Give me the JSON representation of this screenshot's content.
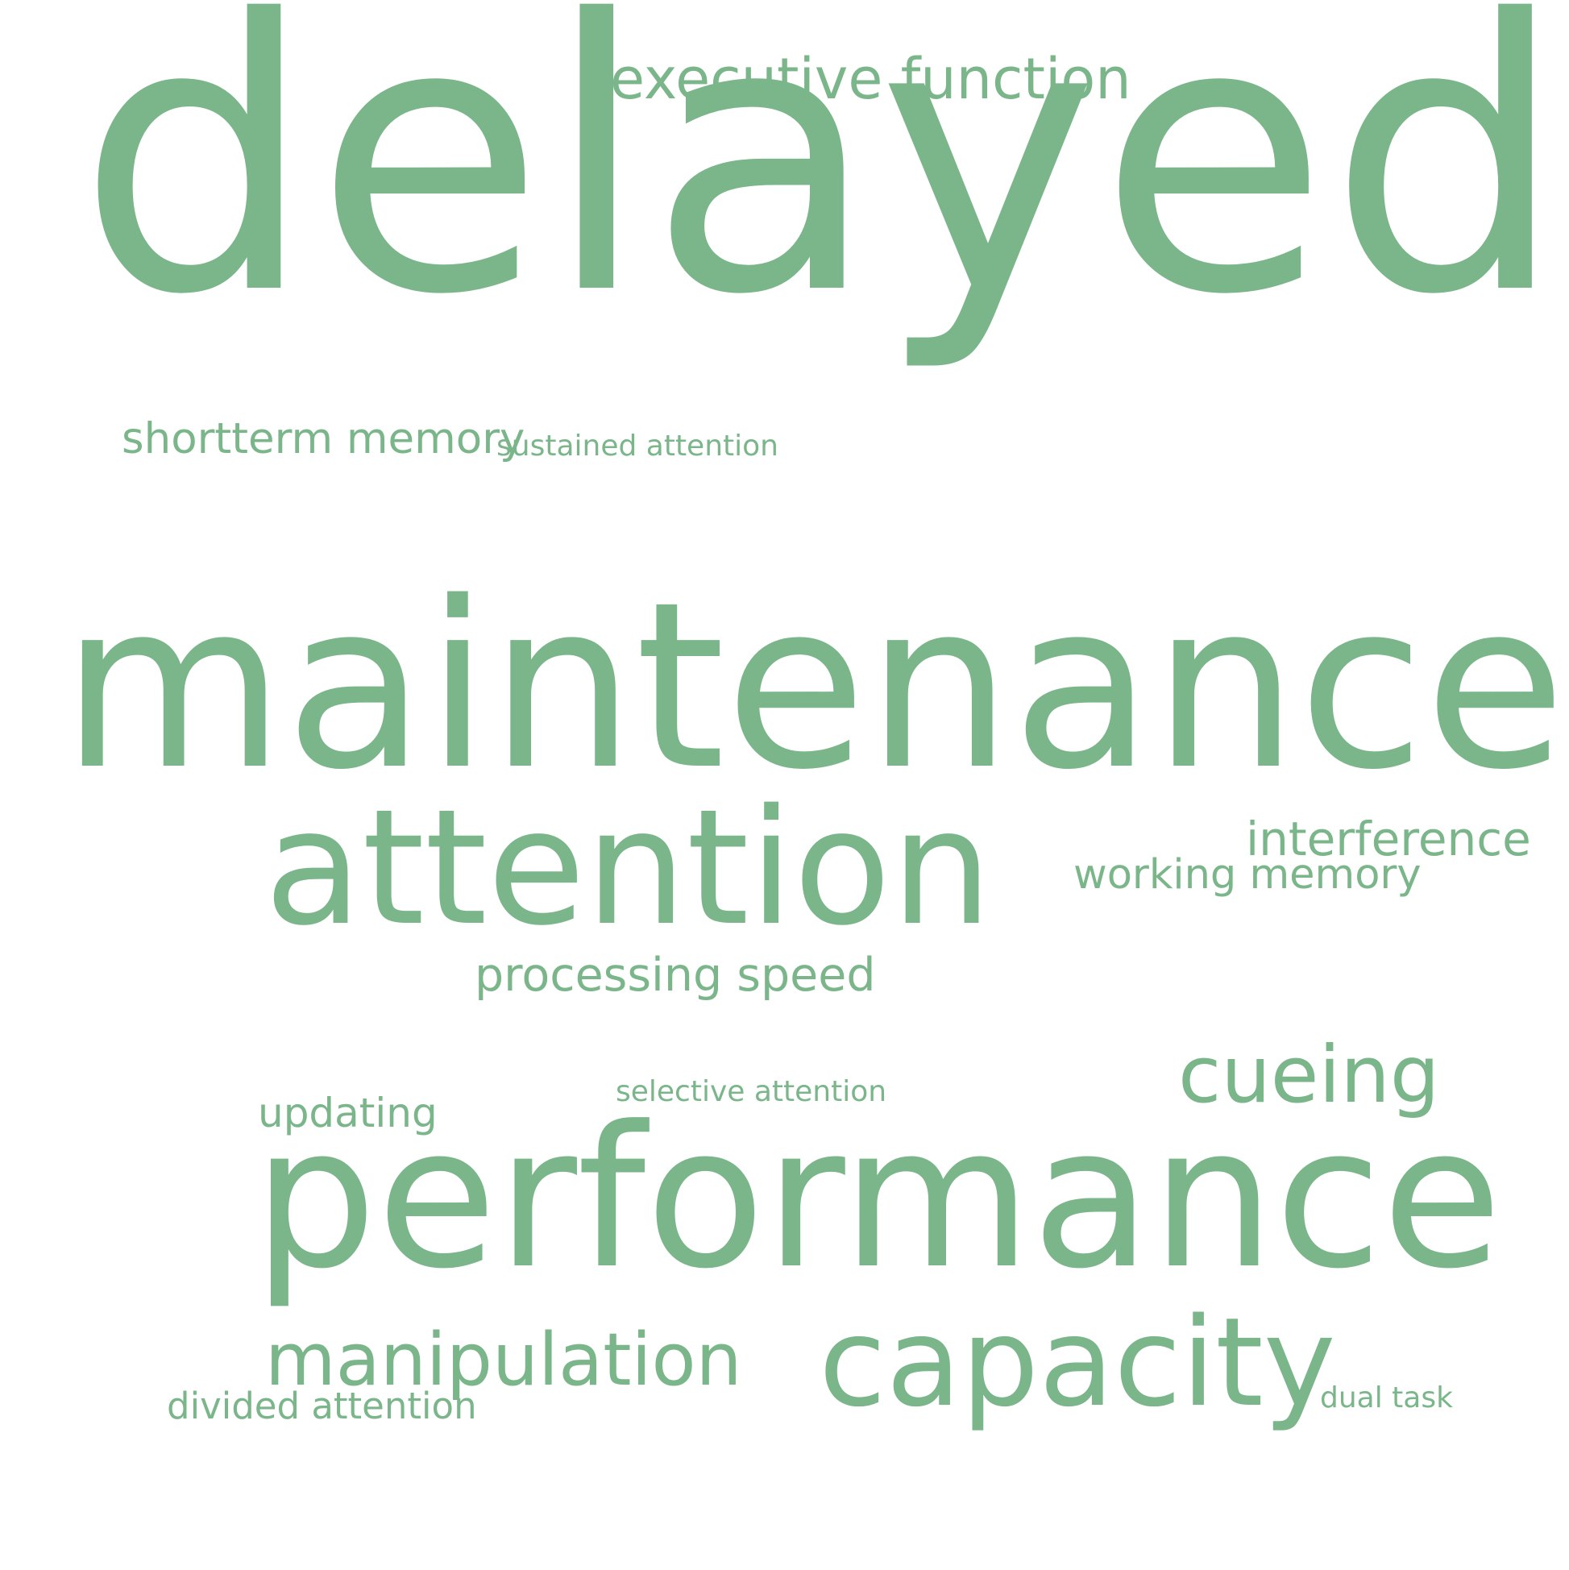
{
  "style": {
    "word_color": "#7ab68a",
    "background": "#ffffff"
  },
  "words": {
    "delayed": "delayed",
    "executive_function": "executive function",
    "shortterm_memory": "shortterm memory",
    "sustained_attention": "sustained attention",
    "maintenance": "maintenance",
    "attention": "attention",
    "interference": "interference",
    "working_memory": "working memory",
    "processing_speed": "processing speed",
    "cueing": "cueing",
    "selective_attention": "selective attention",
    "updating": "updating",
    "performance": "performance",
    "manipulation": "manipulation",
    "capacity": "capacity",
    "divided_attention": "divided attention",
    "dual_task": "dual task"
  }
}
